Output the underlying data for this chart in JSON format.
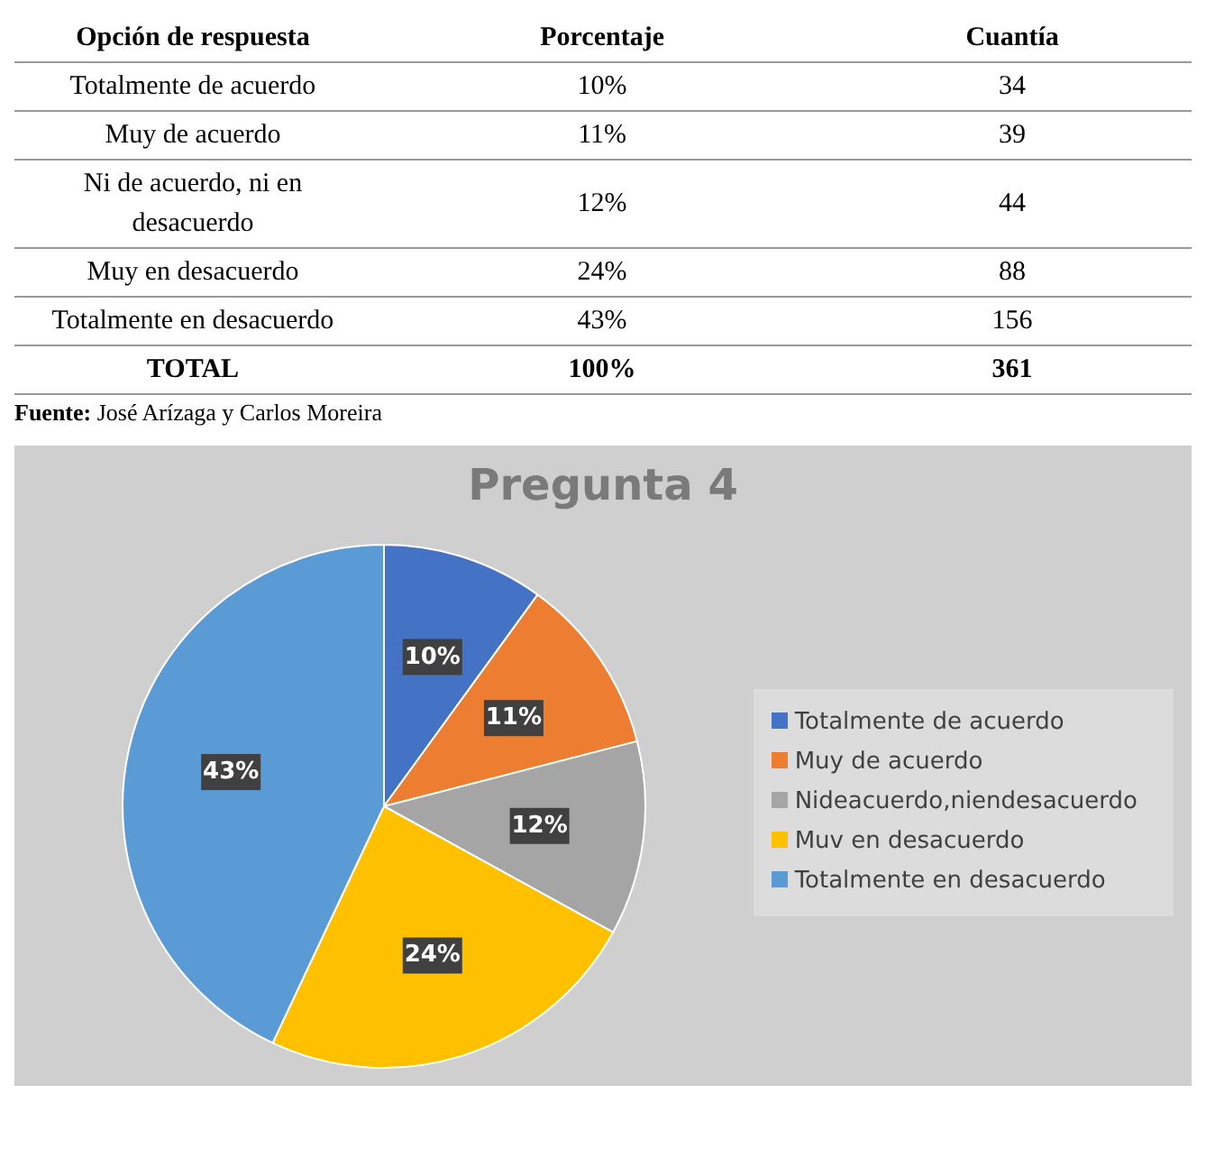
{
  "chart_data": [
    {
      "type": "other",
      "annotations": [
        "Opción de respuesta",
        "Porcentaje",
        "Cuantía",
        "Totalmente de acuerdo",
        "10%",
        "34",
        "Muy de acuerdo",
        "11%",
        "39",
        "Ni de acuerdo, ni en desacuerdo",
        "12%",
        "44",
        "Muy en desacuerdo",
        "24%",
        "88",
        "Totalmente en desacuerdo",
        "43%",
        "156",
        "TOTAL",
        "100%",
        "361",
        "Fuente: José Arízaga y Carlos Moreira"
      ]
    },
    {
      "type": "pie",
      "title": "Pregunta 4",
      "categories": [
        "Totalmente de acuerdo",
        "Muy de acuerdo",
        "Nideacuerdo,niendesacuerdo",
        "Muv en desacuerdo",
        "Totalmente en desacuerdo"
      ],
      "values": [
        10,
        11,
        12,
        24,
        43
      ],
      "value_labels": [
        "10%",
        "11%",
        "12%",
        "24%",
        "43%"
      ],
      "colors": [
        "#4472c4",
        "#ed7d31",
        "#a5a5a5",
        "#ffc000",
        "#5b9bd5"
      ],
      "legend": "right"
    }
  ]
}
